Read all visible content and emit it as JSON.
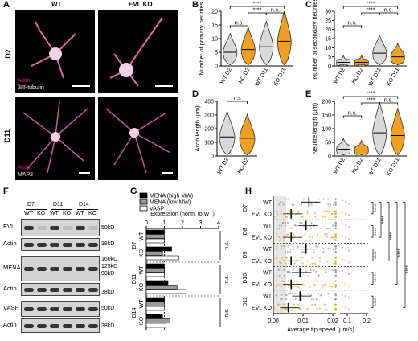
{
  "panels": {
    "A": "A",
    "B": "B",
    "C": "C",
    "D": "D",
    "E": "E",
    "F": "F",
    "G": "G",
    "H": "H"
  },
  "panelA": {
    "col_wt": "WT",
    "col_ko": "EVL KO",
    "row_d2": "D2",
    "row_d11": "D11",
    "stain_actin": "Actin",
    "stain_tubulin": "βIII-tubulin",
    "stain_map2": "MAP2",
    "colors": {
      "actin": "#e6007e",
      "tubulin": "#ffffff"
    }
  },
  "panelB": {
    "ylabel": "Number of primary neurites",
    "yticks": [
      "0",
      "5",
      "10",
      "15",
      "20"
    ],
    "xticks": [
      "WT D2",
      "KO D2",
      "WT D11",
      "KO D11"
    ],
    "sig": [
      "****",
      "****",
      "n.s.",
      "n.s."
    ],
    "chart_data": {
      "type": "violin",
      "categories": [
        "WT D2",
        "KO D2",
        "WT D11",
        "KO D11"
      ],
      "ylim": [
        0,
        20
      ],
      "medians": [
        5,
        6,
        7,
        9
      ]
    }
  },
  "panelC": {
    "ylabel": "Number of secondary neurites",
    "yticks": [
      "0",
      "5",
      "10",
      "15",
      "20",
      "25",
      "30"
    ],
    "xticks": [
      "WT D2",
      "KO D2",
      "WT D11",
      "KO D11"
    ],
    "sig": [
      "****",
      "****",
      "n.s.",
      "n.s."
    ],
    "chart_data": {
      "type": "violin",
      "categories": [
        "WT D2",
        "KO D2",
        "WT D11",
        "KO D11"
      ],
      "ylim": [
        0,
        30
      ],
      "medians": [
        2,
        2,
        7,
        5
      ]
    }
  },
  "panelD": {
    "ylabel": "Axon length (µm)",
    "yticks": [
      "0",
      "100",
      "200",
      "300",
      "400"
    ],
    "xticks": [
      "WT D2",
      "KO D2"
    ],
    "sig": [
      "n.s"
    ],
    "chart_data": {
      "type": "violin",
      "categories": [
        "WT D2",
        "KO D2"
      ],
      "ylim": [
        0,
        400
      ],
      "medians": [
        140,
        130
      ]
    }
  },
  "panelE": {
    "ylabel": "Neurite length (µm)",
    "yticks": [
      "0",
      "50",
      "100",
      "150",
      "200"
    ],
    "xticks": [
      "WT D2",
      "KO D2",
      "WT D11",
      "KO D11"
    ],
    "sig": [
      "****",
      "****",
      "n.s.",
      "n.s."
    ],
    "chart_data": {
      "type": "violin",
      "categories": [
        "WT D2",
        "KO D2",
        "WT D11",
        "KO D11"
      ],
      "ylim": [
        0,
        200
      ],
      "medians": [
        25,
        22,
        85,
        75
      ]
    }
  },
  "panelF": {
    "days": [
      "D7",
      "D11",
      "D14"
    ],
    "genotypes": [
      "WT",
      "KO",
      "WT",
      "KO",
      "WT",
      "KO"
    ],
    "rows": [
      "EVL",
      "Actin",
      "MENA",
      "Actin",
      "VASP",
      "Actin"
    ],
    "mw": [
      "50kD",
      "38kD",
      "160kD",
      "125kD",
      "90kD",
      "38kD",
      "50kD",
      "38kD"
    ]
  },
  "panelG": {
    "legend": [
      "MENA (high MW)",
      "MENA (low MW)",
      "VASP"
    ],
    "xlabel": "Expression (norm. to WT)",
    "xticks": [
      "0",
      "1",
      "2",
      "3",
      "4"
    ],
    "days": [
      "D7",
      "D11",
      "D14"
    ],
    "genotypes": [
      "WT",
      "KO"
    ],
    "sig": [
      "n.s.",
      "n.s.",
      "n.s."
    ],
    "colors": [
      "#000000",
      "#9a9a9a",
      "#ffffff"
    ],
    "chart_data": {
      "type": "bar",
      "categories": [
        "D7 WT",
        "D7 KO",
        "D11 WT",
        "D11 KO",
        "D14 WT",
        "D14 KO"
      ],
      "series": [
        {
          "name": "MENA (high MW)",
          "values": [
            1,
            1.4,
            1,
            1.2,
            1,
            0.9
          ]
        },
        {
          "name": "MENA (low MW)",
          "values": [
            1,
            0.9,
            1,
            1.7,
            1,
            1.3
          ]
        },
        {
          "name": "VASP",
          "values": [
            1,
            1.8,
            1,
            2.2,
            1,
            1.1
          ]
        }
      ],
      "xlim": [
        0,
        4
      ]
    }
  },
  "panelH": {
    "xlabel": "Average tip speed (µm/s)",
    "xticks": [
      "0.00",
      "0.01",
      "0.02",
      "0.1",
      "0.2"
    ],
    "days": [
      "D7",
      "D8",
      "D9",
      "D10",
      "D11"
    ],
    "genotypes": [
      "WT",
      "EVL KO"
    ],
    "sig": "****",
    "colors": {
      "wt": "#999999",
      "ko": "#f0a020"
    },
    "chart_data": {
      "type": "scatter",
      "categories": [
        "D7 WT",
        "D7 EVL KO",
        "D8 WT",
        "D8 EVL KO",
        "D9 WT",
        "D9 EVL KO",
        "D10 WT",
        "D10 EVL KO",
        "D11 WT",
        "D11 EVL KO"
      ],
      "means": [
        0.012,
        0.006,
        0.011,
        0.006,
        0.011,
        0.006,
        0.009,
        0.006,
        0.009,
        0.005
      ]
    }
  }
}
